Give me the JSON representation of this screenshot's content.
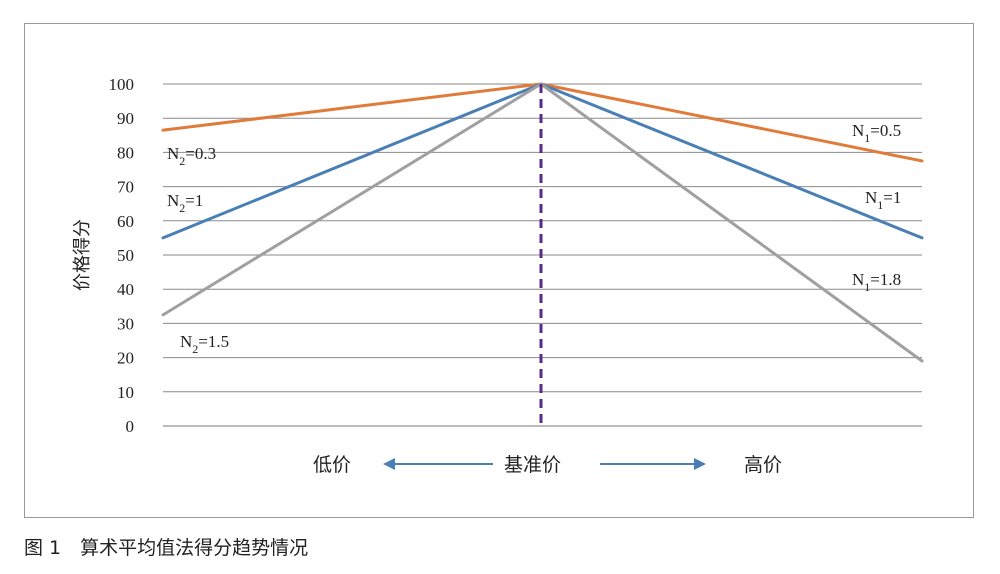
{
  "chart_data": {
    "type": "line",
    "ylabel": "价格得分",
    "ylim": [
      0,
      100
    ],
    "yticks": [
      0,
      10,
      20,
      30,
      40,
      50,
      60,
      70,
      80,
      90,
      100
    ],
    "grid": true,
    "center_marker": "基准价",
    "left_label": "低价",
    "right_label": "高价",
    "series": [
      {
        "side": "low",
        "label": "N2=0.3",
        "sym": "N",
        "sub": "2",
        "coef": "=0.3",
        "color": "#e07b39",
        "x": [
          -1,
          0
        ],
        "values": [
          86.5,
          100
        ]
      },
      {
        "side": "low",
        "label": "N2=1",
        "sym": "N",
        "sub": "2",
        "coef": "=1",
        "color": "#4a7fb5",
        "x": [
          -1,
          0
        ],
        "values": [
          55,
          100
        ]
      },
      {
        "side": "low",
        "label": "N2=1.5",
        "sym": "N",
        "sub": "2",
        "coef": "=1.5",
        "color": "#a0a0a0",
        "x": [
          -1,
          0
        ],
        "values": [
          32.5,
          100
        ]
      },
      {
        "side": "high",
        "label": "N1=0.5",
        "sym": "N",
        "sub": "1",
        "coef": "=0.5",
        "color": "#e07b39",
        "x": [
          0,
          1
        ],
        "values": [
          100,
          77.5
        ]
      },
      {
        "side": "high",
        "label": "N1=1",
        "sym": "N",
        "sub": "1",
        "coef": "=1",
        "color": "#4a7fb5",
        "x": [
          0,
          1
        ],
        "values": [
          100,
          55
        ]
      },
      {
        "side": "high",
        "label": "N1=1.8",
        "sym": "N",
        "sub": "1",
        "coef": "=1.8",
        "color": "#a0a0a0",
        "x": [
          0,
          1
        ],
        "values": [
          100,
          19
        ]
      }
    ]
  },
  "caption": "图 1　算术平均值法得分趋势情况"
}
